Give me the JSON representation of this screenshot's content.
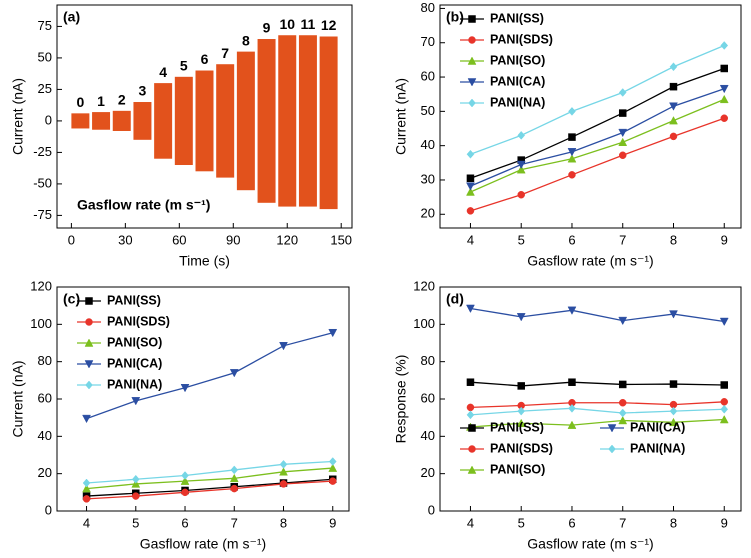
{
  "chart_data": [
    {
      "type": "envelope",
      "panel_label": "(a)",
      "annotation": "Gasflow rate (m s⁻¹)",
      "xlabel": "Time (s)",
      "ylabel": "Current (nA)",
      "color": "#e2521c",
      "xlim": [
        -8,
        156
      ],
      "xticks": [
        0,
        30,
        60,
        90,
        120,
        150
      ],
      "ylim": [
        -85,
        92
      ],
      "yticks": [
        -75,
        -50,
        -25,
        0,
        25,
        50,
        75
      ],
      "categories": [
        "0",
        "1",
        "2",
        "3",
        "4",
        "5",
        "6",
        "7",
        "8",
        "9",
        "10",
        "11",
        "12"
      ],
      "x_start": [
        0,
        11.5,
        23,
        34.5,
        46,
        57.5,
        69,
        80.5,
        92,
        103.5,
        115,
        126.5,
        138
      ],
      "x_end": [
        10,
        21.5,
        33,
        44.5,
        56,
        67.5,
        79,
        90.5,
        102,
        113.5,
        125,
        136.5,
        148
      ],
      "high": [
        6,
        7,
        8,
        15,
        30,
        35,
        40,
        45,
        55,
        65,
        68,
        68,
        67
      ],
      "low": [
        -6,
        -7,
        -8,
        -15,
        -30,
        -35,
        -40,
        -45,
        -55,
        -65,
        -68,
        -68,
        -70
      ]
    },
    {
      "type": "line",
      "panel_label": "(b)",
      "xlabel": "Gasflow rate (m s⁻¹)",
      "ylabel": "Current (nA)",
      "legend": "upper left",
      "legend_columns": 1,
      "x": [
        4,
        5,
        6,
        7,
        8,
        9
      ],
      "xlim": [
        3.4,
        9.33
      ],
      "xticks": [
        4,
        5,
        6,
        7,
        8,
        9
      ],
      "ylim": [
        16,
        81
      ],
      "yticks": [
        20,
        30,
        40,
        50,
        60,
        70,
        80
      ],
      "series": [
        {
          "name": "PANI(SS)",
          "color": "#000000",
          "marker": "square",
          "values": [
            30.5,
            35.8,
            42.5,
            49.5,
            57.2,
            62.5
          ]
        },
        {
          "name": "PANI(SDS)",
          "color": "#e8342a",
          "marker": "circle",
          "values": [
            21,
            25.7,
            31.5,
            37.2,
            42.7,
            48
          ]
        },
        {
          "name": "PANI(SO)",
          "color": "#7cbf1e",
          "marker": "triangle-up",
          "values": [
            26.5,
            33,
            36.2,
            41,
            47.3,
            53.5
          ]
        },
        {
          "name": "PANI(CA)",
          "color": "#2b4ea2",
          "marker": "triangle-down",
          "values": [
            28.2,
            34.5,
            38.2,
            43.8,
            51.5,
            56.6
          ]
        },
        {
          "name": "PANI(NA)",
          "color": "#76d6e6",
          "marker": "diamond",
          "values": [
            37.5,
            43,
            50,
            55.5,
            63,
            69.2
          ]
        }
      ]
    },
    {
      "type": "line",
      "panel_label": "(c)",
      "xlabel": "Gasflow rate (m s⁻¹)",
      "ylabel": "Current (nA)",
      "legend": "upper left",
      "legend_columns": 1,
      "x": [
        4,
        5,
        6,
        7,
        8,
        9
      ],
      "xlim": [
        3.4,
        9.33
      ],
      "xticks": [
        4,
        5,
        6,
        7,
        8,
        9
      ],
      "ylim": [
        0,
        120
      ],
      "yticks": [
        0,
        20,
        40,
        60,
        80,
        100,
        120
      ],
      "series": [
        {
          "name": "PANI(SS)",
          "color": "#000000",
          "marker": "square",
          "values": [
            8,
            9.5,
            11,
            13,
            15,
            17
          ]
        },
        {
          "name": "PANI(SDS)",
          "color": "#e8342a",
          "marker": "circle",
          "values": [
            6.5,
            8,
            10,
            12,
            14.5,
            16
          ]
        },
        {
          "name": "PANI(SO)",
          "color": "#7cbf1e",
          "marker": "triangle-up",
          "values": [
            12,
            14.5,
            16,
            17.5,
            21,
            23
          ]
        },
        {
          "name": "PANI(CA)",
          "color": "#2b4ea2",
          "marker": "triangle-down",
          "values": [
            49.5,
            59,
            66,
            74,
            88.5,
            95.5
          ]
        },
        {
          "name": "PANI(NA)",
          "color": "#76d6e6",
          "marker": "diamond",
          "values": [
            15,
            17,
            19,
            22,
            25,
            26.5
          ]
        }
      ]
    },
    {
      "type": "line",
      "panel_label": "(d)",
      "xlabel": "Gasflow rate (m s⁻¹)",
      "ylabel": "Response (%)",
      "legend": "lower center",
      "legend_columns": 2,
      "x": [
        4,
        5,
        6,
        7,
        8,
        9
      ],
      "xlim": [
        3.4,
        9.33
      ],
      "xticks": [
        4,
        5,
        6,
        7,
        8,
        9
      ],
      "ylim": [
        0,
        120
      ],
      "yticks": [
        0,
        20,
        40,
        60,
        80,
        100,
        120
      ],
      "series": [
        {
          "name": "PANI(SS)",
          "color": "#000000",
          "marker": "square",
          "values": [
            69,
            67,
            69,
            67.8,
            68,
            67.5
          ]
        },
        {
          "name": "PANI(SDS)",
          "color": "#e8342a",
          "marker": "circle",
          "values": [
            55.5,
            56.5,
            58,
            58,
            57,
            58.5
          ]
        },
        {
          "name": "PANI(SO)",
          "color": "#7cbf1e",
          "marker": "triangle-up",
          "values": [
            45,
            47,
            46,
            48.5,
            47.5,
            49
          ]
        },
        {
          "name": "PANI(CA)",
          "color": "#2b4ea2",
          "marker": "triangle-down",
          "values": [
            108.5,
            104,
            107.5,
            102,
            105.5,
            101.5
          ]
        },
        {
          "name": "PANI(NA)",
          "color": "#76d6e6",
          "marker": "diamond",
          "values": [
            51.5,
            53.5,
            55,
            52.5,
            53.5,
            54.5
          ]
        }
      ]
    }
  ]
}
